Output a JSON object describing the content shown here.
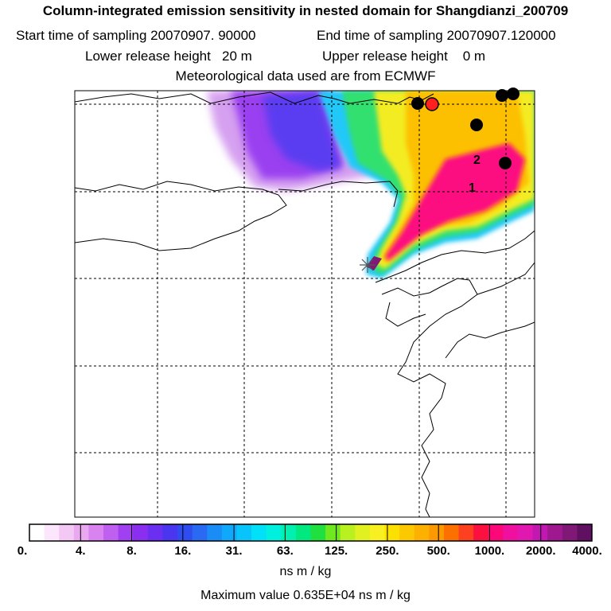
{
  "header": {
    "title": "Column-integrated emission sensitivity in nested domain for Shangdianzi_200709",
    "line2_start": "Start time of sampling 20070907. 90000",
    "line2_end": "End time of sampling 20070907.120000",
    "line3_lower": "Lower release height   20 m",
    "line3_upper": "Upper release height    0 m",
    "line4": "Meteorological data used are from ECMWF"
  },
  "plume_labels": [
    {
      "text": "2"
    },
    {
      "text": "1"
    }
  ],
  "colorbar": {
    "tick_labels": [
      "0.",
      "4.",
      "8.",
      "16.",
      "31.",
      "63.",
      "125.",
      "250.",
      "500.",
      "1000.",
      "2000.",
      "4000."
    ],
    "colors": [
      "#ffffff",
      "#fbe6fb",
      "#f4c8f4",
      "#eaa8f0",
      "#d883ef",
      "#c060f0",
      "#a040f0",
      "#8a2ff0",
      "#6a2ff0",
      "#4a35f0",
      "#2f4cf0",
      "#2a6af2",
      "#1a8cf6",
      "#10a8fa",
      "#08c4fb",
      "#00e0f8",
      "#00f0e0",
      "#00f0b0",
      "#00e880",
      "#20e040",
      "#70e820",
      "#b8f020",
      "#e0f020",
      "#f8f020",
      "#fbe000",
      "#fcc800",
      "#fcb000",
      "#fc9800",
      "#fc7000",
      "#fc4020",
      "#fc1040",
      "#fc0878",
      "#f010a0",
      "#e018b0",
      "#c018b0",
      "#a01890",
      "#801878",
      "#601060"
    ],
    "units": "ns m / kg"
  },
  "max_value": "Maximum value  0.635E+04 ns m / kg",
  "colors": {
    "frame": "#000000",
    "grid": "#000000",
    "receptor": "#555555",
    "station_black": "#000000",
    "station_red": "#ff2020"
  }
}
